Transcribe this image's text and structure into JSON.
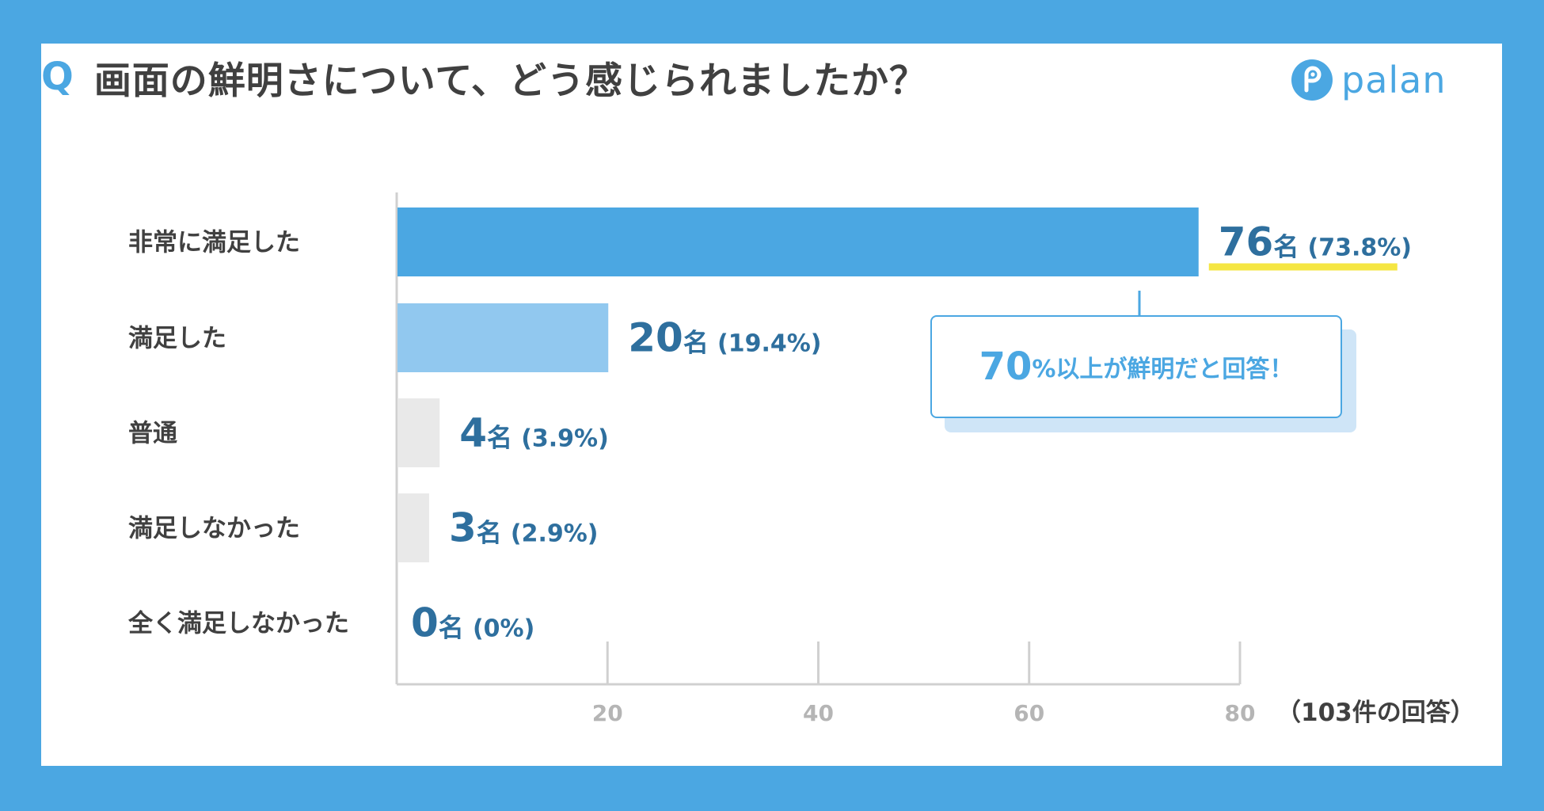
{
  "title": {
    "q_mark": "Q",
    "question": "画面の鮮明さについて、どう感じられましたか？"
  },
  "logo": {
    "text": "palan",
    "icon": "palan-p-icon"
  },
  "colors": {
    "background": "#4ba7e2",
    "bar_primary": "#4ba7e2",
    "bar_secondary": "#91c8ef",
    "bar_neutral": "#e9e9e9",
    "value_text": "#2e6f9e",
    "highlight": "#f5e642",
    "axis": "#d0d0d0"
  },
  "callout": {
    "big": "70",
    "rest": "%以上が鮮明だと回答！"
  },
  "chart_data": {
    "type": "bar",
    "orientation": "horizontal",
    "categories": [
      "非常に満足した",
      "満足した",
      "普通",
      "満足しなかった",
      "全く満足しなかった"
    ],
    "values": [
      76,
      20,
      4,
      3,
      0
    ],
    "unit": "名",
    "percent_labels": [
      "(73.8%)",
      "(19.4%)",
      "(3.9%)",
      "(2.9%)",
      "(0%)"
    ],
    "xlim": [
      0,
      80
    ],
    "xticks": [
      20,
      40,
      60,
      80
    ],
    "note": "（103件の回答）",
    "grid": true
  }
}
